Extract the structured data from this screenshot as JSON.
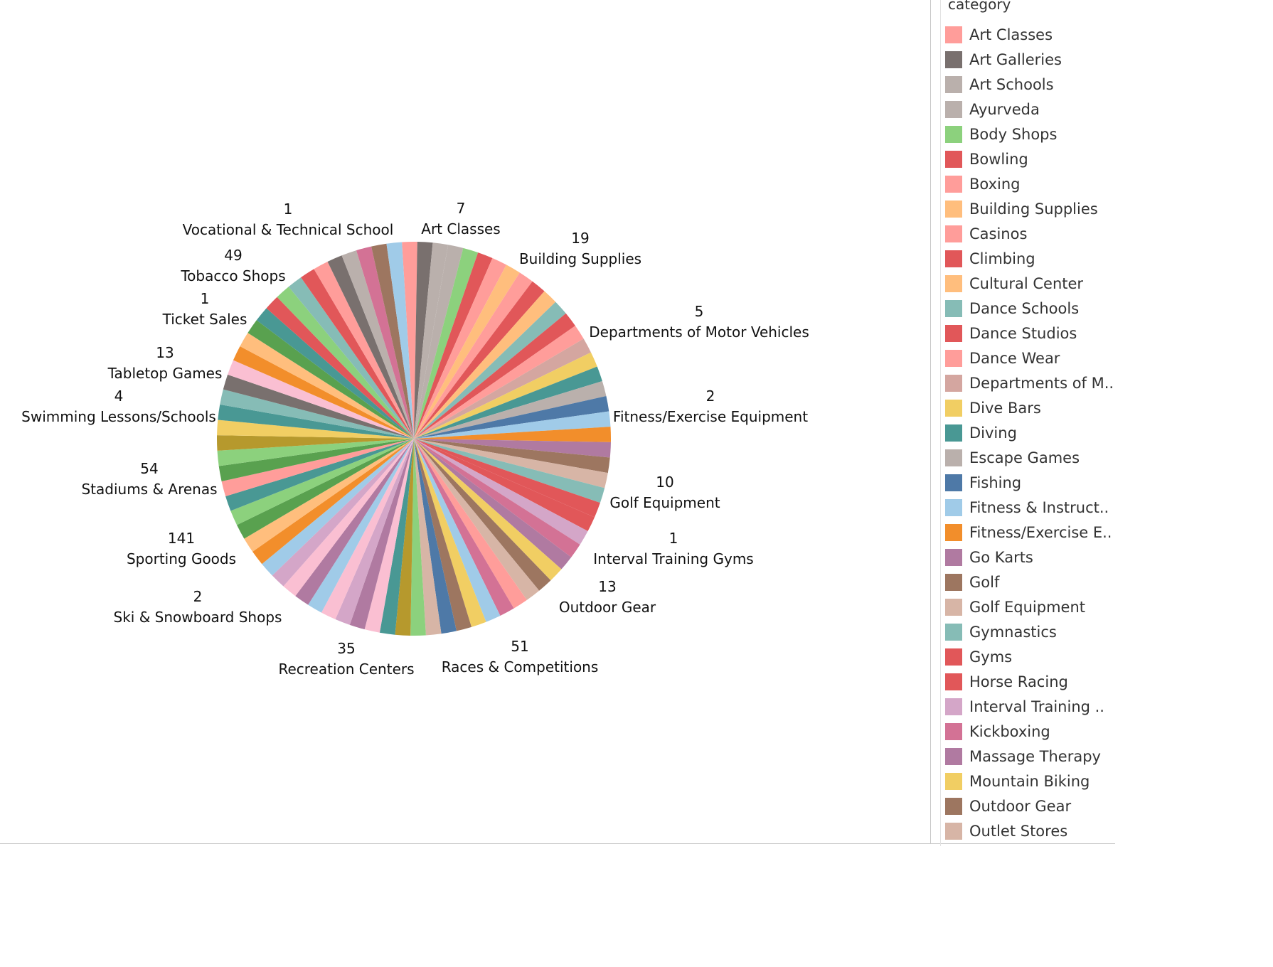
{
  "legend": {
    "title": "category",
    "items": [
      {
        "label": "Art Classes",
        "color": "#FF9D9A"
      },
      {
        "label": "Art Galleries",
        "color": "#79706E"
      },
      {
        "label": "Art Schools",
        "color": "#BAB0AC"
      },
      {
        "label": "Ayurveda",
        "color": "#BAB0AC"
      },
      {
        "label": "Body Shops",
        "color": "#8CD17D"
      },
      {
        "label": "Bowling",
        "color": "#E15759"
      },
      {
        "label": "Boxing",
        "color": "#FF9D9A"
      },
      {
        "label": "Building Supplies",
        "color": "#FFBE7D"
      },
      {
        "label": "Casinos",
        "color": "#FF9D9A"
      },
      {
        "label": "Climbing",
        "color": "#E15759"
      },
      {
        "label": "Cultural Center",
        "color": "#FFBE7D"
      },
      {
        "label": "Dance Schools",
        "color": "#86BCB6"
      },
      {
        "label": "Dance Studios",
        "color": "#E15759"
      },
      {
        "label": "Dance Wear",
        "color": "#FF9D9A"
      },
      {
        "label": "Departments of M..",
        "color": "#D4A6A0"
      },
      {
        "label": "Dive Bars",
        "color": "#F1CE63"
      },
      {
        "label": "Diving",
        "color": "#499894"
      },
      {
        "label": "Escape Games",
        "color": "#BAB0AC"
      },
      {
        "label": "Fishing",
        "color": "#4E79A7"
      },
      {
        "label": "Fitness & Instruct..",
        "color": "#A0CBE8"
      },
      {
        "label": "Fitness/Exercise E..",
        "color": "#F28E2B"
      },
      {
        "label": "Go Karts",
        "color": "#B07AA1"
      },
      {
        "label": "Golf",
        "color": "#9D7660"
      },
      {
        "label": "Golf Equipment",
        "color": "#D7B5A6"
      },
      {
        "label": "Gymnastics",
        "color": "#86BCB6"
      },
      {
        "label": "Gyms",
        "color": "#E15759"
      },
      {
        "label": "Horse Racing",
        "color": "#E15759"
      },
      {
        "label": "Interval Training ..",
        "color": "#D4A6C8"
      },
      {
        "label": "Kickboxing",
        "color": "#D37295"
      },
      {
        "label": "Massage Therapy",
        "color": "#B07AA1"
      },
      {
        "label": "Mountain Biking",
        "color": "#F1CE63"
      },
      {
        "label": "Outdoor Gear",
        "color": "#9D7660"
      },
      {
        "label": "Outlet Stores",
        "color": "#D7B5A6"
      }
    ]
  },
  "chart_data": {
    "type": "pie",
    "title": "",
    "slice_count": 80,
    "slice_colors": [
      "#FF9D9A",
      "#79706E",
      "#BAB0AC",
      "#BAB0AC",
      "#8CD17D",
      "#E15759",
      "#FF9D9A",
      "#FFBE7D",
      "#FF9D9A",
      "#E15759",
      "#FFBE7D",
      "#86BCB6",
      "#E15759",
      "#FF9D9A",
      "#D4A6A0",
      "#F1CE63",
      "#499894",
      "#BAB0AC",
      "#4E79A7",
      "#A0CBE8",
      "#F28E2B",
      "#B07AA1",
      "#9D7660",
      "#D7B5A6",
      "#86BCB6",
      "#E15759",
      "#E15759",
      "#D4A6C8",
      "#D37295",
      "#B07AA1",
      "#F1CE63",
      "#9D7660",
      "#D7B5A6",
      "#FF9D9A",
      "#D37295",
      "#A0CBE8",
      "#F1CE63",
      "#9D7660",
      "#4E79A7",
      "#D7B5A6",
      "#8CD17D",
      "#B6992D",
      "#499894",
      "#FABFD2",
      "#B07AA1",
      "#D4A6C8",
      "#FABFD2",
      "#A0CBE8",
      "#B07AA1",
      "#FABFD2",
      "#D4A6C8",
      "#A0CBE8",
      "#F28E2B",
      "#FFBE7D",
      "#59A14F",
      "#8CD17D",
      "#499894",
      "#FF9D9A",
      "#59A14F",
      "#8CD17D",
      "#B6992D",
      "#F1CE63",
      "#499894",
      "#86BCB6",
      "#79706E",
      "#FABFD2",
      "#F28E2B",
      "#FFBE7D",
      "#59A14F",
      "#499894",
      "#E15759",
      "#8CD17D",
      "#86BCB6",
      "#E15759",
      "#FF9D9A",
      "#79706E",
      "#BAB0AC",
      "#D37295",
      "#9D7660",
      "#A0CBE8"
    ],
    "labeled_slices": [
      {
        "category": "Art Classes",
        "value": 7
      },
      {
        "category": "Building Supplies",
        "value": 19
      },
      {
        "category": "Departments of Motor Vehicles",
        "value": 5
      },
      {
        "category": "Fitness/Exercise Equipment",
        "value": 2
      },
      {
        "category": "Golf Equipment",
        "value": 10
      },
      {
        "category": "Interval Training Gyms",
        "value": 1
      },
      {
        "category": "Outdoor Gear",
        "value": 13
      },
      {
        "category": "Races & Competitions",
        "value": 51
      },
      {
        "category": "Recreation Centers",
        "value": 35
      },
      {
        "category": "Ski & Snowboard Shops",
        "value": 2
      },
      {
        "category": "Sporting Goods",
        "value": 141
      },
      {
        "category": "Stadiums & Arenas",
        "value": 54
      },
      {
        "category": "Swimming Lessons/Schools",
        "value": 4
      },
      {
        "category": "Tabletop Games",
        "value": 13
      },
      {
        "category": "Ticket Sales",
        "value": 1
      },
      {
        "category": "Tobacco Shops",
        "value": 49
      },
      {
        "category": "Vocational & Technical School",
        "value": 1
      }
    ]
  }
}
